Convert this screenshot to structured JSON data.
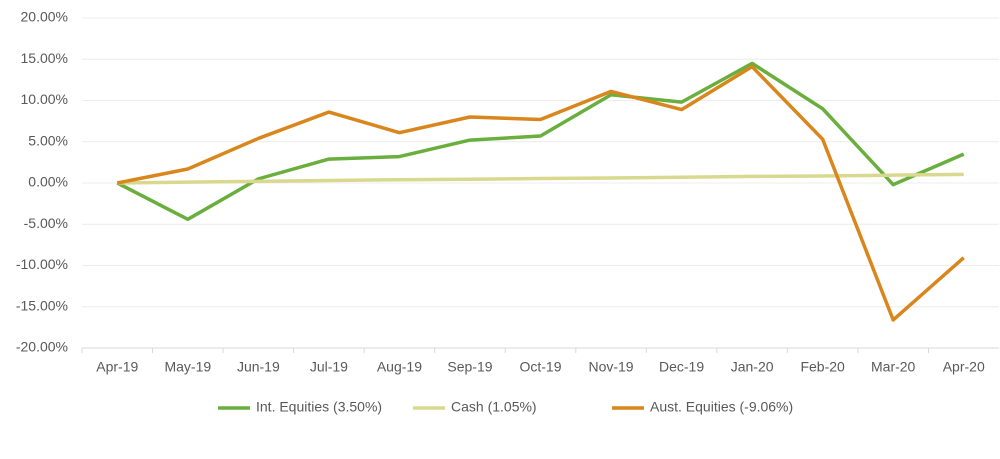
{
  "chart_data": {
    "type": "line",
    "categories": [
      "Apr-19",
      "May-19",
      "Jun-19",
      "Jul-19",
      "Aug-19",
      "Sep-19",
      "Oct-19",
      "Nov-19",
      "Dec-19",
      "Jan-20",
      "Feb-20",
      "Mar-20",
      "Apr-20"
    ],
    "series": [
      {
        "name": "Int. Equities (3.50%)",
        "color": "#6aaf3d",
        "values": [
          0,
          -4.4,
          0.5,
          2.9,
          3.2,
          5.2,
          5.7,
          10.7,
          9.8,
          14.5,
          9.0,
          -0.2,
          3.5
        ]
      },
      {
        "name": "Cash (1.05%)",
        "color": "#d8d98e",
        "values": [
          0,
          0.1,
          0.2,
          0.3,
          0.4,
          0.45,
          0.55,
          0.6,
          0.7,
          0.8,
          0.85,
          0.95,
          1.05
        ]
      },
      {
        "name": "Aust. Equities (-9.06%)",
        "color": "#d9861c",
        "values": [
          0,
          1.7,
          5.4,
          8.6,
          6.1,
          8.0,
          7.7,
          11.1,
          8.9,
          14.1,
          5.3,
          -16.6,
          -9.06
        ]
      }
    ],
    "ylim": [
      -20,
      20
    ],
    "yticks": [
      {
        "value": -20,
        "label": "-20.00%"
      },
      {
        "value": -15,
        "label": "-15.00%"
      },
      {
        "value": -10,
        "label": "-10.00%"
      },
      {
        "value": -5,
        "label": "-5.00%"
      },
      {
        "value": 0,
        "label": "0.00%"
      },
      {
        "value": 5,
        "label": "5.00%"
      },
      {
        "value": 10,
        "label": "10.00%"
      },
      {
        "value": 15,
        "label": "15.00%"
      },
      {
        "value": 20,
        "label": "20.00%"
      }
    ],
    "grid": true,
    "legend": "bottom"
  }
}
